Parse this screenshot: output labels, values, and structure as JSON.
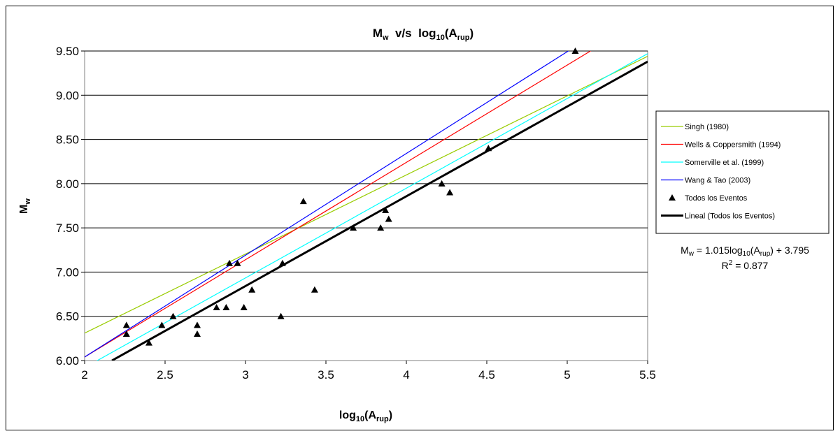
{
  "chart_data": {
    "type": "scatter",
    "title": "M",
    "title_parts": {
      "m": "M",
      "w_sub": "w",
      "mid": "  v/s  log",
      "ten_sub": "10",
      "open": "(A",
      "rup_sub": "rup",
      "close": ")"
    },
    "xlabel_parts": {
      "log": "log",
      "ten_sub": "10",
      "open": "(A",
      "rup_sub": "rup",
      "close": ")"
    },
    "ylabel_parts": {
      "m": "M",
      "w_sub": "w"
    },
    "xlim": [
      2,
      5.5
    ],
    "ylim": [
      6.0,
      9.5
    ],
    "x_ticks": [
      2,
      2.5,
      3,
      3.5,
      4,
      4.5,
      5,
      5.5
    ],
    "x_tick_labels": [
      "2",
      "2.5",
      "3",
      "3.5",
      "4",
      "4.5",
      "5",
      "5.5"
    ],
    "y_ticks": [
      6.0,
      6.5,
      7.0,
      7.5,
      8.0,
      8.5,
      9.0,
      9.5
    ],
    "y_tick_labels": [
      "6.00",
      "6.50",
      "7.00",
      "7.50",
      "8.00",
      "8.50",
      "9.00",
      "9.50"
    ],
    "grid": "horizontal",
    "legend_position": "right",
    "series": [
      {
        "name": "Singh (1980)",
        "kind": "line",
        "color": "#99CC00",
        "x": [
          2,
          5.5
        ],
        "y": [
          6.31,
          9.44
        ]
      },
      {
        "name": "Wells & Coppersmith (1994)",
        "kind": "line",
        "color": "#FF0000",
        "x": [
          2,
          5.19
        ],
        "y": [
          6.04,
          9.55
        ]
      },
      {
        "name": "Somerville et al. (1999)",
        "kind": "line",
        "color": "#00FFFF",
        "x": [
          2,
          5.5
        ],
        "y": [
          5.92,
          9.47
        ]
      },
      {
        "name": "Wang & Tao (2003)",
        "kind": "line",
        "color": "#0000FF",
        "x": [
          2,
          5.05
        ],
        "y": [
          6.04,
          9.55
        ]
      },
      {
        "name": "Todos los Eventos",
        "kind": "scatter",
        "color": "#000000",
        "x": [
          2.26,
          2.26,
          2.4,
          2.48,
          2.55,
          2.7,
          2.7,
          2.82,
          2.88,
          2.9,
          2.95,
          2.99,
          3.04,
          3.22,
          3.23,
          3.36,
          3.43,
          3.67,
          3.84,
          3.87,
          3.89,
          4.22,
          4.27,
          4.51,
          5.05
        ],
        "y": [
          6.4,
          6.3,
          6.2,
          6.4,
          6.5,
          6.4,
          6.3,
          6.6,
          6.6,
          7.1,
          7.1,
          6.6,
          6.8,
          6.5,
          7.1,
          7.8,
          6.8,
          7.5,
          7.5,
          7.7,
          7.6,
          8.0,
          7.9,
          8.4,
          9.5
        ]
      },
      {
        "name": "Lineal (Todos los Eventos)",
        "kind": "trendline",
        "color": "#000000",
        "x": [
          2.17,
          5.5
        ],
        "y": [
          6.0,
          9.38
        ]
      }
    ],
    "annotation": {
      "eq_parts": {
        "m": "M",
        "w_sub": "w",
        "mid": " = 1.015log",
        "ten_sub": "10",
        "open": "(A",
        "rup_sub": "rup",
        "close": ") + 3.795"
      },
      "r2_parts": {
        "r": "R",
        "sup": "2",
        "rest": " = 0.877"
      }
    }
  }
}
